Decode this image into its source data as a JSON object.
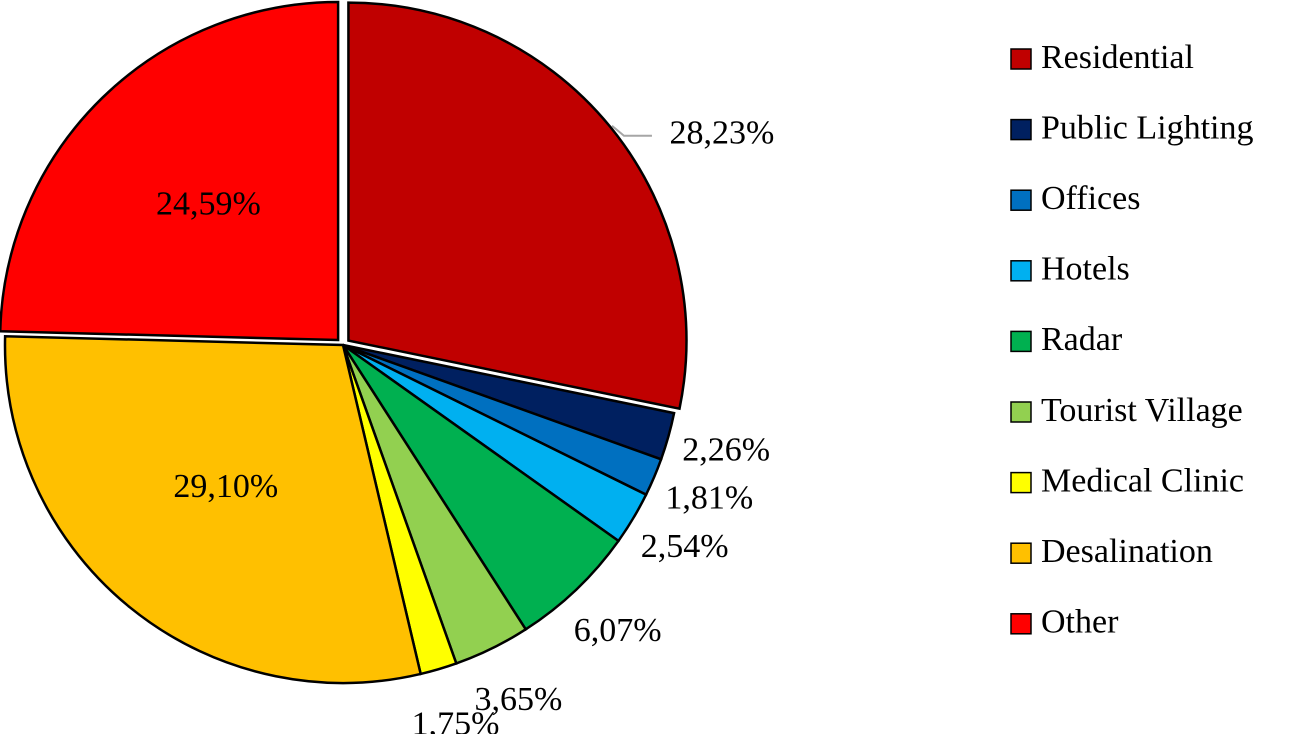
{
  "chart_data": {
    "type": "pie",
    "categories": [
      "Residential",
      "Public Lighting",
      "Offices",
      "Hotels",
      "Radar",
      "Tourist Village",
      "Medical Clinic",
      "Desalination",
      "Other"
    ],
    "values": [
      28.23,
      2.26,
      1.81,
      2.54,
      6.07,
      3.65,
      1.75,
      29.1,
      24.59
    ],
    "value_labels": [
      "28,23%",
      "2,26%",
      "1,81%",
      "2,54%",
      "6,07%",
      "3,65%",
      "1,75%",
      "29,10%",
      "24,59%"
    ],
    "colors": [
      "#c00000",
      "#002060",
      "#0070c0",
      "#00b0f0",
      "#00b050",
      "#92d050",
      "#ffff00",
      "#ffc000",
      "#ff0000"
    ],
    "legend": "right"
  }
}
